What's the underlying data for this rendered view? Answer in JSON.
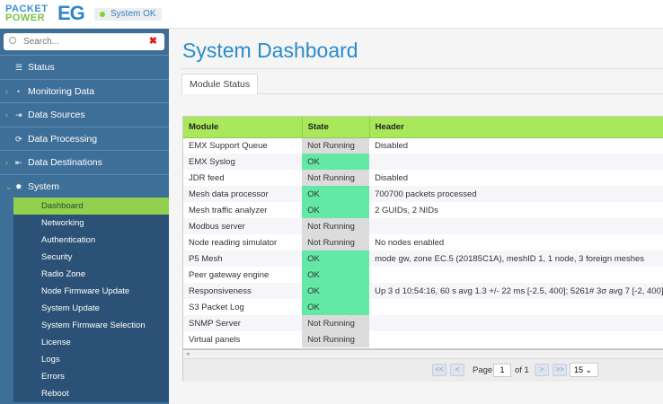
{
  "logo": {
    "line1": "PACKET",
    "line2": "POWER",
    "mark": "EG"
  },
  "status_badge": {
    "label": "System OK",
    "color": "#7ed03a"
  },
  "search": {
    "placeholder": "Search..."
  },
  "sidebar": {
    "items": [
      {
        "label": "Status",
        "icon": "list-icon",
        "expandable": false
      },
      {
        "label": "Monitoring Data",
        "icon": "dashboard-gauge-icon",
        "expandable": true
      },
      {
        "label": "Data Sources",
        "icon": "sign-in-icon",
        "expandable": true
      },
      {
        "label": "Data Processing",
        "icon": "refresh-icon",
        "expandable": false
      },
      {
        "label": "Data Destinations",
        "icon": "sign-out-icon",
        "expandable": true
      },
      {
        "label": "System",
        "icon": "gear-icon",
        "expandable": true,
        "expanded": true
      }
    ],
    "system_sub": [
      "Dashboard",
      "Networking",
      "Authentication",
      "Security",
      "Radio Zone",
      "Node Firmware Update",
      "System Update",
      "System Firmware Selection",
      "License",
      "Logs",
      "Errors",
      "Reboot"
    ],
    "active": "Dashboard"
  },
  "main": {
    "title": "System Dashboard",
    "tab": "Module Status",
    "columns": [
      "Module",
      "State",
      "Header"
    ],
    "rows": [
      [
        "EMX Support Queue",
        "Not Running",
        "Disabled"
      ],
      [
        "EMX Syslog",
        "OK",
        ""
      ],
      [
        "JDR feed",
        "Not Running",
        "Disabled"
      ],
      [
        "Mesh data processor",
        "OK",
        "700700 packets processed"
      ],
      [
        "Mesh traffic analyzer",
        "OK",
        "2 GUIDs, 2 NIDs"
      ],
      [
        "Modbus server",
        "Not Running",
        ""
      ],
      [
        "Node reading simulator",
        "Not Running",
        "No nodes enabled"
      ],
      [
        "P5 Mesh",
        "OK",
        "mode gw, zone EC.5 (20185C1A), meshID 1, 1 node, 3 foreign meshes"
      ],
      [
        "Peer gateway engine",
        "OK",
        ""
      ],
      [
        "Responsiveness",
        "OK",
        "Up 3 d 10:54:16, 60 s avg 1.3 +/- 22 ms [-2.5, 400]; 5261# 3σ avg 7 [-2, 400]"
      ],
      [
        "S3 Packet Log",
        "OK",
        ""
      ],
      [
        "SNMP Server",
        "Not Running",
        ""
      ],
      [
        "Virtual panels",
        "Not Running",
        ""
      ]
    ],
    "pager": {
      "first": "<<",
      "prev": "<",
      "page_label": "Page",
      "page": "1",
      "of_label": "of 1",
      "next": ">",
      "last": ">>",
      "page_size": "15"
    }
  },
  "colors": {
    "ok": "#63e8a6",
    "not_running": "#dcdcdc",
    "header": "#a8e85a",
    "sidebar": "#3e6f99",
    "accent": "#2a8bcc"
  }
}
